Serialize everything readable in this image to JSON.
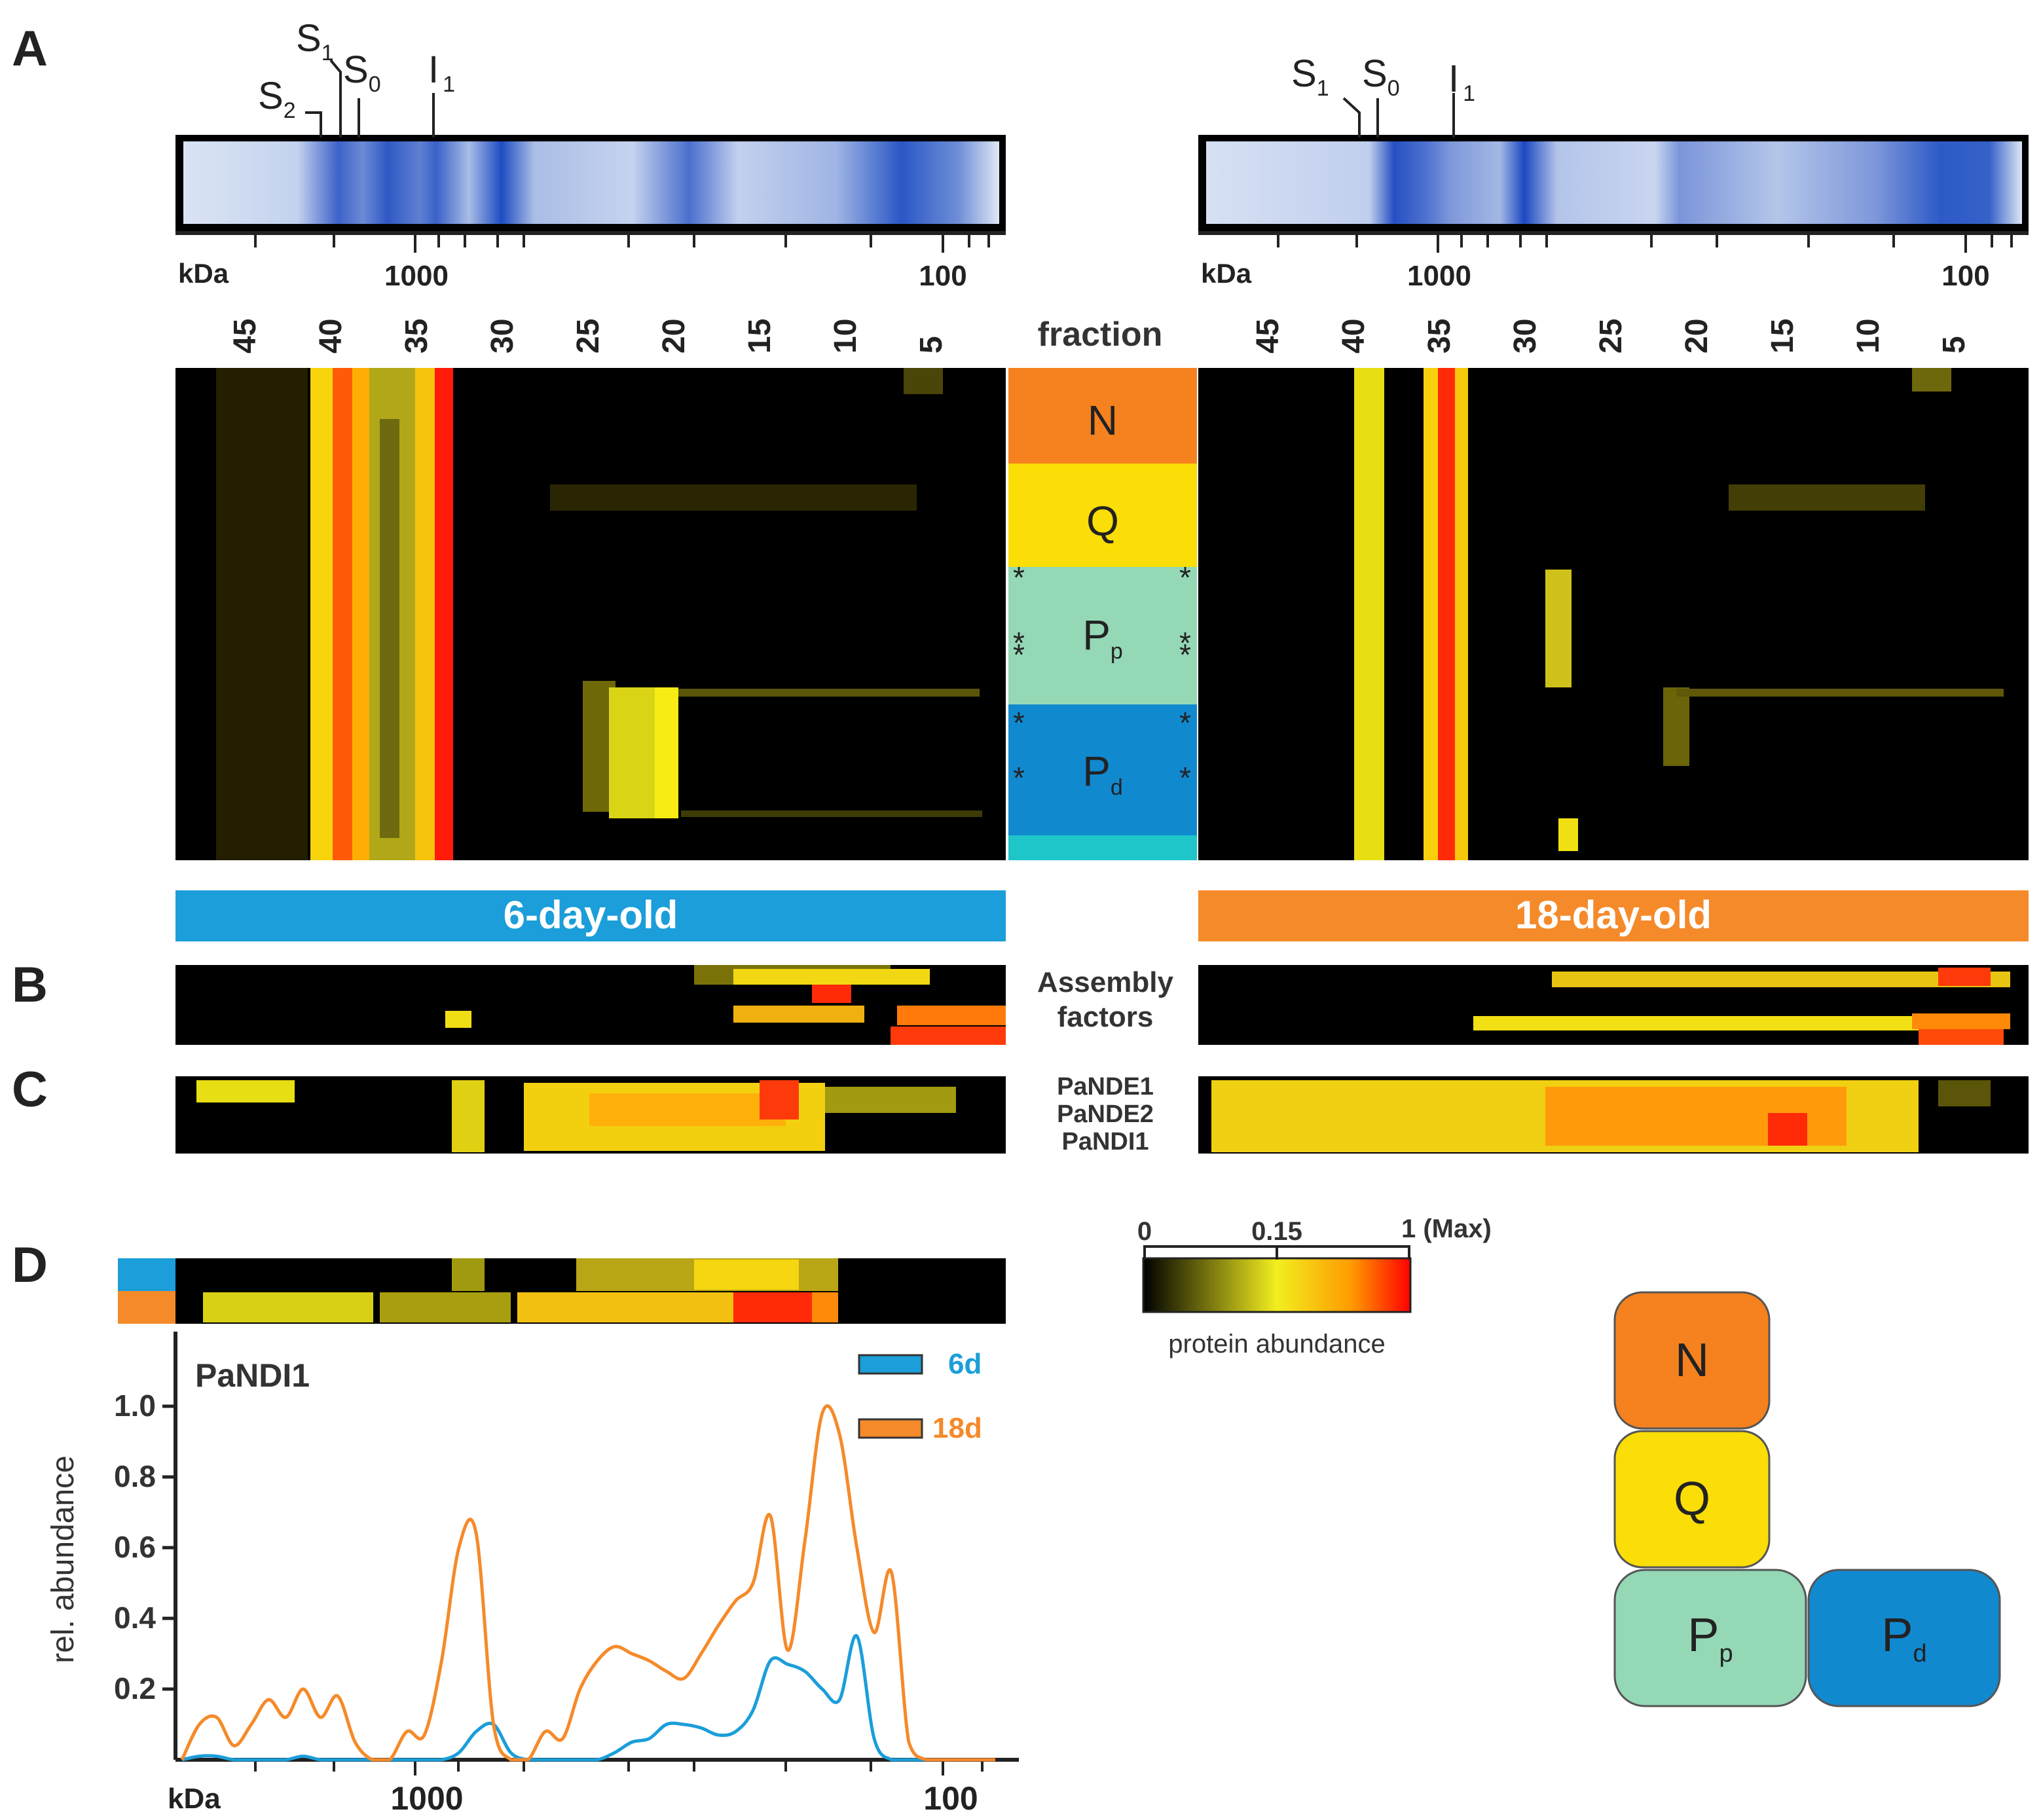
{
  "panels": {
    "a": "A",
    "b": "B",
    "c": "C",
    "d": "D"
  },
  "gel": {
    "left_markers": [
      {
        "main": "S",
        "sub": "2"
      },
      {
        "main": "S",
        "sub": "1"
      },
      {
        "main": "S",
        "sub": "0"
      },
      {
        "main": "I",
        "sub": "1"
      }
    ],
    "right_markers": [
      {
        "main": "S",
        "sub": "1"
      },
      {
        "main": "S",
        "sub": "0"
      },
      {
        "main": "I",
        "sub": "1"
      }
    ],
    "kda_label": "kDa",
    "scale_label_1000": "1000",
    "scale_label_100": "100"
  },
  "fraction_ticks": [
    "45",
    "40",
    "35",
    "30",
    "25",
    "20",
    "15",
    "10",
    "5"
  ],
  "fraction_label": "fraction",
  "modules": [
    {
      "main": "N",
      "sub": "",
      "color": "#F5811F"
    },
    {
      "main": "Q",
      "sub": "",
      "color": "#FBDD07"
    },
    {
      "main": "P",
      "sub": "p",
      "color": "#94D8B6"
    },
    {
      "main": "P",
      "sub": "d",
      "color": "#1189CF"
    }
  ],
  "ages": {
    "young": "6-day-old",
    "old": "18-day-old",
    "young_color": "#1B9ED9",
    "old_color": "#F58A2A"
  },
  "row_labels": {
    "assembly": [
      "Assembly",
      "factors"
    ],
    "ndh": [
      "PaNDE1",
      "PaNDE2",
      "PaNDI1"
    ]
  },
  "colorbar": {
    "tick_0": "0",
    "tick_015": "0.15",
    "tick_1": "1 (Max)",
    "caption": "protein abundance"
  },
  "chart_data": {
    "type": "line",
    "title": "PaNDI1",
    "xlabel": "kDa",
    "ylabel": "rel. abundance",
    "x_scale": "log (reversed): left = high mass, right = low mass",
    "xtick_labels": [
      "1000",
      "100"
    ],
    "ylim": [
      0,
      1.2
    ],
    "yticks": [
      0.2,
      0.4,
      0.6,
      0.8,
      1.0
    ],
    "ytick_labels": [
      "0.2",
      "0.4",
      "0.6",
      "0.8",
      "1.0"
    ],
    "x_fraction": [
      48,
      47,
      46,
      45,
      44,
      43,
      42,
      41,
      40,
      39,
      38,
      37,
      36,
      35,
      34,
      33,
      32,
      31,
      30,
      29,
      28,
      27,
      26,
      25,
      24,
      23,
      22,
      21,
      20,
      19,
      18,
      17,
      16,
      15,
      14,
      13,
      12,
      11,
      10,
      9,
      8,
      7,
      6,
      5,
      4,
      3,
      2,
      1
    ],
    "series": [
      {
        "name": "6d",
        "color": "#1B9ED9",
        "values": [
          0,
          0.01,
          0.01,
          0,
          0,
          0,
          0,
          0.01,
          0,
          0,
          0,
          0,
          0,
          0,
          0,
          0,
          0.02,
          0.08,
          0.1,
          0.02,
          0,
          0,
          0,
          0,
          0,
          0.02,
          0.05,
          0.06,
          0.1,
          0.1,
          0.09,
          0.07,
          0.08,
          0.14,
          0.28,
          0.27,
          0.25,
          0.2,
          0.17,
          0.35,
          0.06,
          0,
          0,
          0,
          0,
          0,
          0,
          0
        ]
      },
      {
        "name": "18d",
        "color": "#F58A2A",
        "values": [
          0,
          0.1,
          0.12,
          0.04,
          0.1,
          0.17,
          0.12,
          0.2,
          0.12,
          0.18,
          0.05,
          0,
          0,
          0.08,
          0.07,
          0.28,
          0.6,
          0.64,
          0.1,
          0,
          0,
          0.08,
          0.06,
          0.2,
          0.28,
          0.32,
          0.3,
          0.28,
          0.25,
          0.23,
          0.3,
          0.38,
          0.45,
          0.5,
          0.69,
          0.31,
          0.62,
          0.98,
          0.92,
          0.6,
          0.36,
          0.53,
          0.05,
          0,
          0,
          0,
          0,
          0
        ]
      }
    ]
  }
}
